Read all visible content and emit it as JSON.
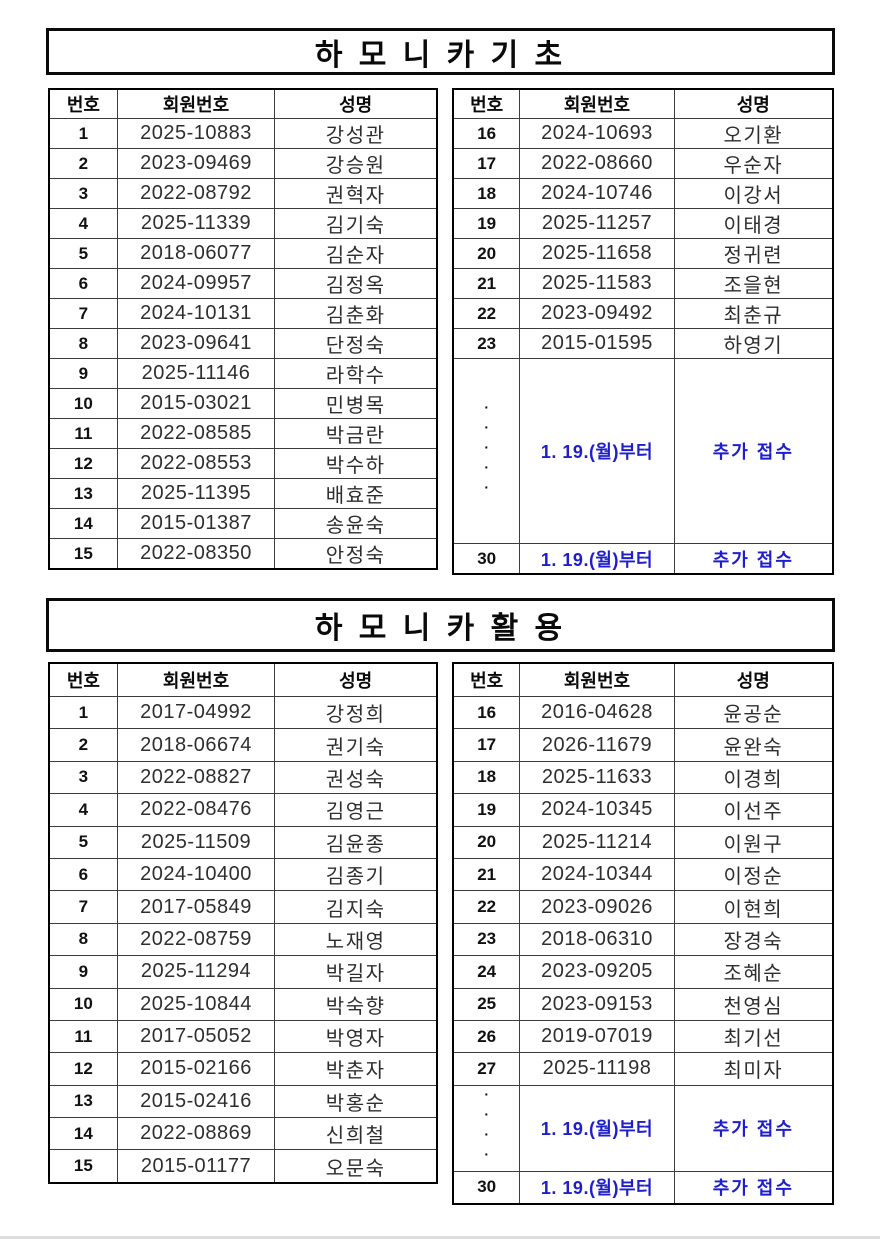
{
  "colors": {
    "accent_blue": "#1e1ecc",
    "border_black": "#000000",
    "text_black": "#0a0a0a",
    "text_body": "#2e2e2e"
  },
  "sections": [
    {
      "title": "하 모 니 카 기 초",
      "columns": [
        "번호",
        "회원번호",
        "성명"
      ],
      "left_rows": [
        [
          "1",
          "2025-10883",
          "강성관"
        ],
        [
          "2",
          "2023-09469",
          "강승원"
        ],
        [
          "3",
          "2022-08792",
          "권혁자"
        ],
        [
          "4",
          "2025-11339",
          "김기숙"
        ],
        [
          "5",
          "2018-06077",
          "김순자"
        ],
        [
          "6",
          "2024-09957",
          "김정옥"
        ],
        [
          "7",
          "2024-10131",
          "김춘화"
        ],
        [
          "8",
          "2023-09641",
          "단정숙"
        ],
        [
          "9",
          "2025-11146",
          "라학수"
        ],
        [
          "10",
          "2015-03021",
          "민병목"
        ],
        [
          "11",
          "2022-08585",
          "박금란"
        ],
        [
          "12",
          "2022-08553",
          "박수하"
        ],
        [
          "13",
          "2025-11395",
          "배효준"
        ],
        [
          "14",
          "2015-01387",
          "송윤숙"
        ],
        [
          "15",
          "2022-08350",
          "안정숙"
        ]
      ],
      "right_rows": [
        [
          "16",
          "2024-10693",
          "오기환"
        ],
        [
          "17",
          "2022-08660",
          "우순자"
        ],
        [
          "18",
          "2024-10746",
          "이강서"
        ],
        [
          "19",
          "2025-11257",
          "이태경"
        ],
        [
          "20",
          "2025-11658",
          "정귀련"
        ],
        [
          "21",
          "2025-11583",
          "조을현"
        ],
        [
          "22",
          "2023-09492",
          "최춘규"
        ],
        [
          "23",
          "2015-01595",
          "하영기"
        ]
      ],
      "extra": {
        "dots": "·····",
        "date": "1. 19.(월)부터",
        "label": "추가  접수",
        "last_no": "30"
      }
    },
    {
      "title": "하 모 니 카 활 용",
      "columns": [
        "번호",
        "회원번호",
        "성명"
      ],
      "left_rows": [
        [
          "1",
          "2017-04992",
          "강정희"
        ],
        [
          "2",
          "2018-06674",
          "권기숙"
        ],
        [
          "3",
          "2022-08827",
          "권성숙"
        ],
        [
          "4",
          "2022-08476",
          "김영근"
        ],
        [
          "5",
          "2025-11509",
          "김윤종"
        ],
        [
          "6",
          "2024-10400",
          "김종기"
        ],
        [
          "7",
          "2017-05849",
          "김지숙"
        ],
        [
          "8",
          "2022-08759",
          "노재영"
        ],
        [
          "9",
          "2025-11294",
          "박길자"
        ],
        [
          "10",
          "2025-10844",
          "박숙향"
        ],
        [
          "11",
          "2017-05052",
          "박영자"
        ],
        [
          "12",
          "2015-02166",
          "박춘자"
        ],
        [
          "13",
          "2015-02416",
          "박홍순"
        ],
        [
          "14",
          "2022-08869",
          "신희철"
        ],
        [
          "15",
          "2015-01177",
          "오문숙"
        ]
      ],
      "right_rows": [
        [
          "16",
          "2016-04628",
          "윤공순"
        ],
        [
          "17",
          "2026-11679",
          "윤완숙"
        ],
        [
          "18",
          "2025-11633",
          "이경희"
        ],
        [
          "19",
          "2024-10345",
          "이선주"
        ],
        [
          "20",
          "2025-11214",
          "이원구"
        ],
        [
          "21",
          "2024-10344",
          "이정순"
        ],
        [
          "22",
          "2023-09026",
          "이현희"
        ],
        [
          "23",
          "2018-06310",
          "장경숙"
        ],
        [
          "24",
          "2023-09205",
          "조혜순"
        ],
        [
          "25",
          "2023-09153",
          "천영심"
        ],
        [
          "26",
          "2019-07019",
          "최기선"
        ],
        [
          "27",
          "2025-11198",
          "최미자"
        ]
      ],
      "extra": {
        "dots": "····",
        "date": "1. 19.(월)부터",
        "label": "추가  접수",
        "last_no": "30"
      }
    }
  ]
}
